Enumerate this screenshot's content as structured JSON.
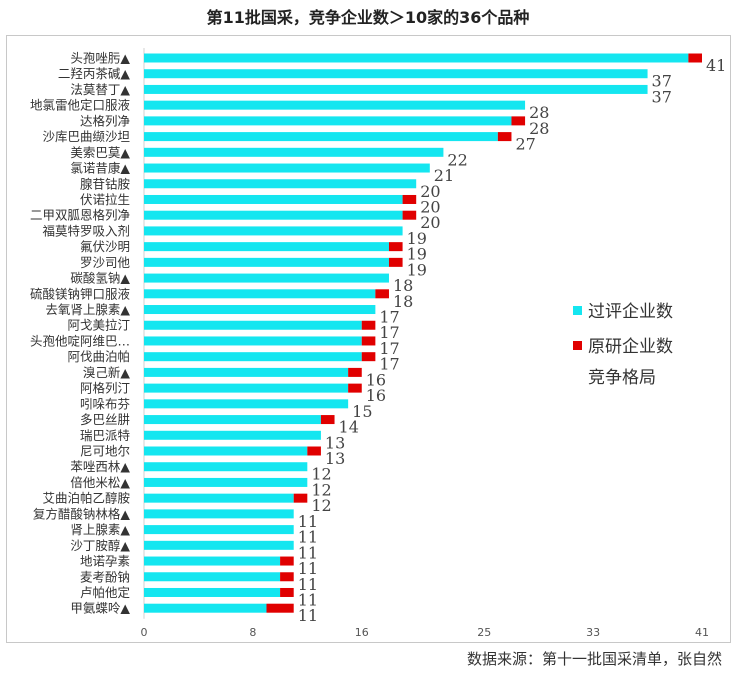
{
  "title": "第11批国采，竞争企业数＞10家的36个品种",
  "source": "数据来源：第十一批国采清单，张自然",
  "colors": {
    "generic": "#14e6f0",
    "original": "#e00000"
  },
  "chart_data": {
    "type": "bar",
    "orientation": "horizontal",
    "stacked": true,
    "categories": [
      "头孢唑肟▲",
      "二羟丙茶碱▲",
      "法莫替丁▲",
      "地氯雷他定口服液",
      "达格列净",
      "沙库巴曲缬沙坦",
      "美索巴莫▲",
      "氯诺昔康▲",
      "腺苷钴胺",
      "伏诺拉生",
      "二甲双胍恩格列净",
      "福莫特罗吸入剂",
      "氟伏沙明",
      "罗沙司他",
      "碳酸氢钠▲",
      "硫酸镁钠钾口服液",
      "去氧肾上腺素▲",
      "阿戈美拉汀",
      "头孢他啶阿维巴…",
      "阿伐曲泊帕",
      "溴己新▲",
      "阿格列汀",
      "吲哚布芬",
      "多巴丝肼",
      "瑞巴派特",
      "尼可地尔",
      "苯唑西林▲",
      "倍他米松▲",
      "艾曲泊帕乙醇胺",
      "复方醋酸钠林格▲",
      "肾上腺素▲",
      "沙丁胺醇▲",
      "地诺孕素",
      "麦考酚钠",
      "卢帕他定",
      "甲氨蝶呤▲"
    ],
    "series": [
      {
        "name": "过评企业数",
        "values": [
          40,
          37,
          37,
          28,
          27,
          26,
          22,
          21,
          20,
          19,
          19,
          19,
          18,
          18,
          18,
          17,
          17,
          16,
          16,
          16,
          15,
          15,
          15,
          13,
          13,
          12,
          12,
          12,
          11,
          11,
          11,
          11,
          10,
          10,
          10,
          9
        ]
      },
      {
        "name": "原研企业数",
        "values": [
          1,
          0,
          0,
          0,
          1,
          1,
          0,
          0,
          0,
          1,
          1,
          0,
          1,
          1,
          0,
          1,
          0,
          1,
          1,
          1,
          1,
          1,
          0,
          1,
          0,
          1,
          0,
          0,
          1,
          0,
          0,
          0,
          1,
          1,
          1,
          2
        ]
      }
    ],
    "totals": [
      41,
      37,
      37,
      28,
      28,
      27,
      22,
      21,
      20,
      20,
      20,
      19,
      19,
      19,
      18,
      18,
      17,
      17,
      17,
      17,
      16,
      16,
      15,
      14,
      13,
      13,
      12,
      12,
      12,
      11,
      11,
      11,
      11,
      11,
      11,
      11
    ],
    "x_ticks": [
      0,
      8,
      16,
      25,
      33,
      41
    ],
    "xlim": [
      0,
      41
    ],
    "legend": {
      "position": "right-middle",
      "extra_label": "竞争格局"
    },
    "grid": false
  }
}
